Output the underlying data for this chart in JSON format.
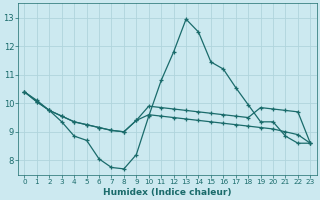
{
  "xlabel": "Humidex (Indice chaleur)",
  "background_color": "#cce9f0",
  "grid_color": "#b0d4dc",
  "line_color": "#1a6b6b",
  "xlim": [
    -0.5,
    23.5
  ],
  "ylim": [
    7.5,
    13.5
  ],
  "xticks": [
    0,
    1,
    2,
    3,
    4,
    5,
    6,
    7,
    8,
    9,
    10,
    11,
    12,
    13,
    14,
    15,
    16,
    17,
    18,
    19,
    20,
    21,
    22,
    23
  ],
  "yticks": [
    8,
    9,
    10,
    11,
    12,
    13
  ],
  "series1_x": [
    0,
    1,
    2,
    3,
    4,
    5,
    6,
    7,
    8,
    9,
    10,
    11,
    12,
    13,
    14,
    15,
    16,
    17,
    18,
    19,
    20,
    21,
    22,
    23
  ],
  "series1_y": [
    10.4,
    10.1,
    9.75,
    9.35,
    8.85,
    8.7,
    8.05,
    7.75,
    7.7,
    8.2,
    9.55,
    10.8,
    11.8,
    12.95,
    12.5,
    11.45,
    11.2,
    10.55,
    9.95,
    9.35,
    9.35,
    8.85,
    8.6,
    8.6
  ],
  "series2_x": [
    0,
    1,
    2,
    3,
    4,
    5,
    6,
    7,
    8,
    9,
    10,
    11,
    12,
    13,
    14,
    15,
    16,
    17,
    18,
    19,
    20,
    21,
    22,
    23
  ],
  "series2_y": [
    10.4,
    10.05,
    9.75,
    9.55,
    9.35,
    9.25,
    9.15,
    9.05,
    9.0,
    9.4,
    9.6,
    9.55,
    9.5,
    9.45,
    9.4,
    9.35,
    9.3,
    9.25,
    9.2,
    9.15,
    9.1,
    9.0,
    8.9,
    8.6
  ],
  "series3_x": [
    0,
    1,
    2,
    3,
    4,
    5,
    6,
    7,
    8,
    9,
    10,
    11,
    12,
    13,
    14,
    15,
    16,
    17,
    18,
    19,
    20,
    21,
    22,
    23
  ],
  "series3_y": [
    10.4,
    10.05,
    9.75,
    9.55,
    9.35,
    9.25,
    9.15,
    9.05,
    9.0,
    9.4,
    9.9,
    9.85,
    9.8,
    9.75,
    9.7,
    9.65,
    9.6,
    9.55,
    9.5,
    9.85,
    9.8,
    9.75,
    9.7,
    8.6
  ]
}
